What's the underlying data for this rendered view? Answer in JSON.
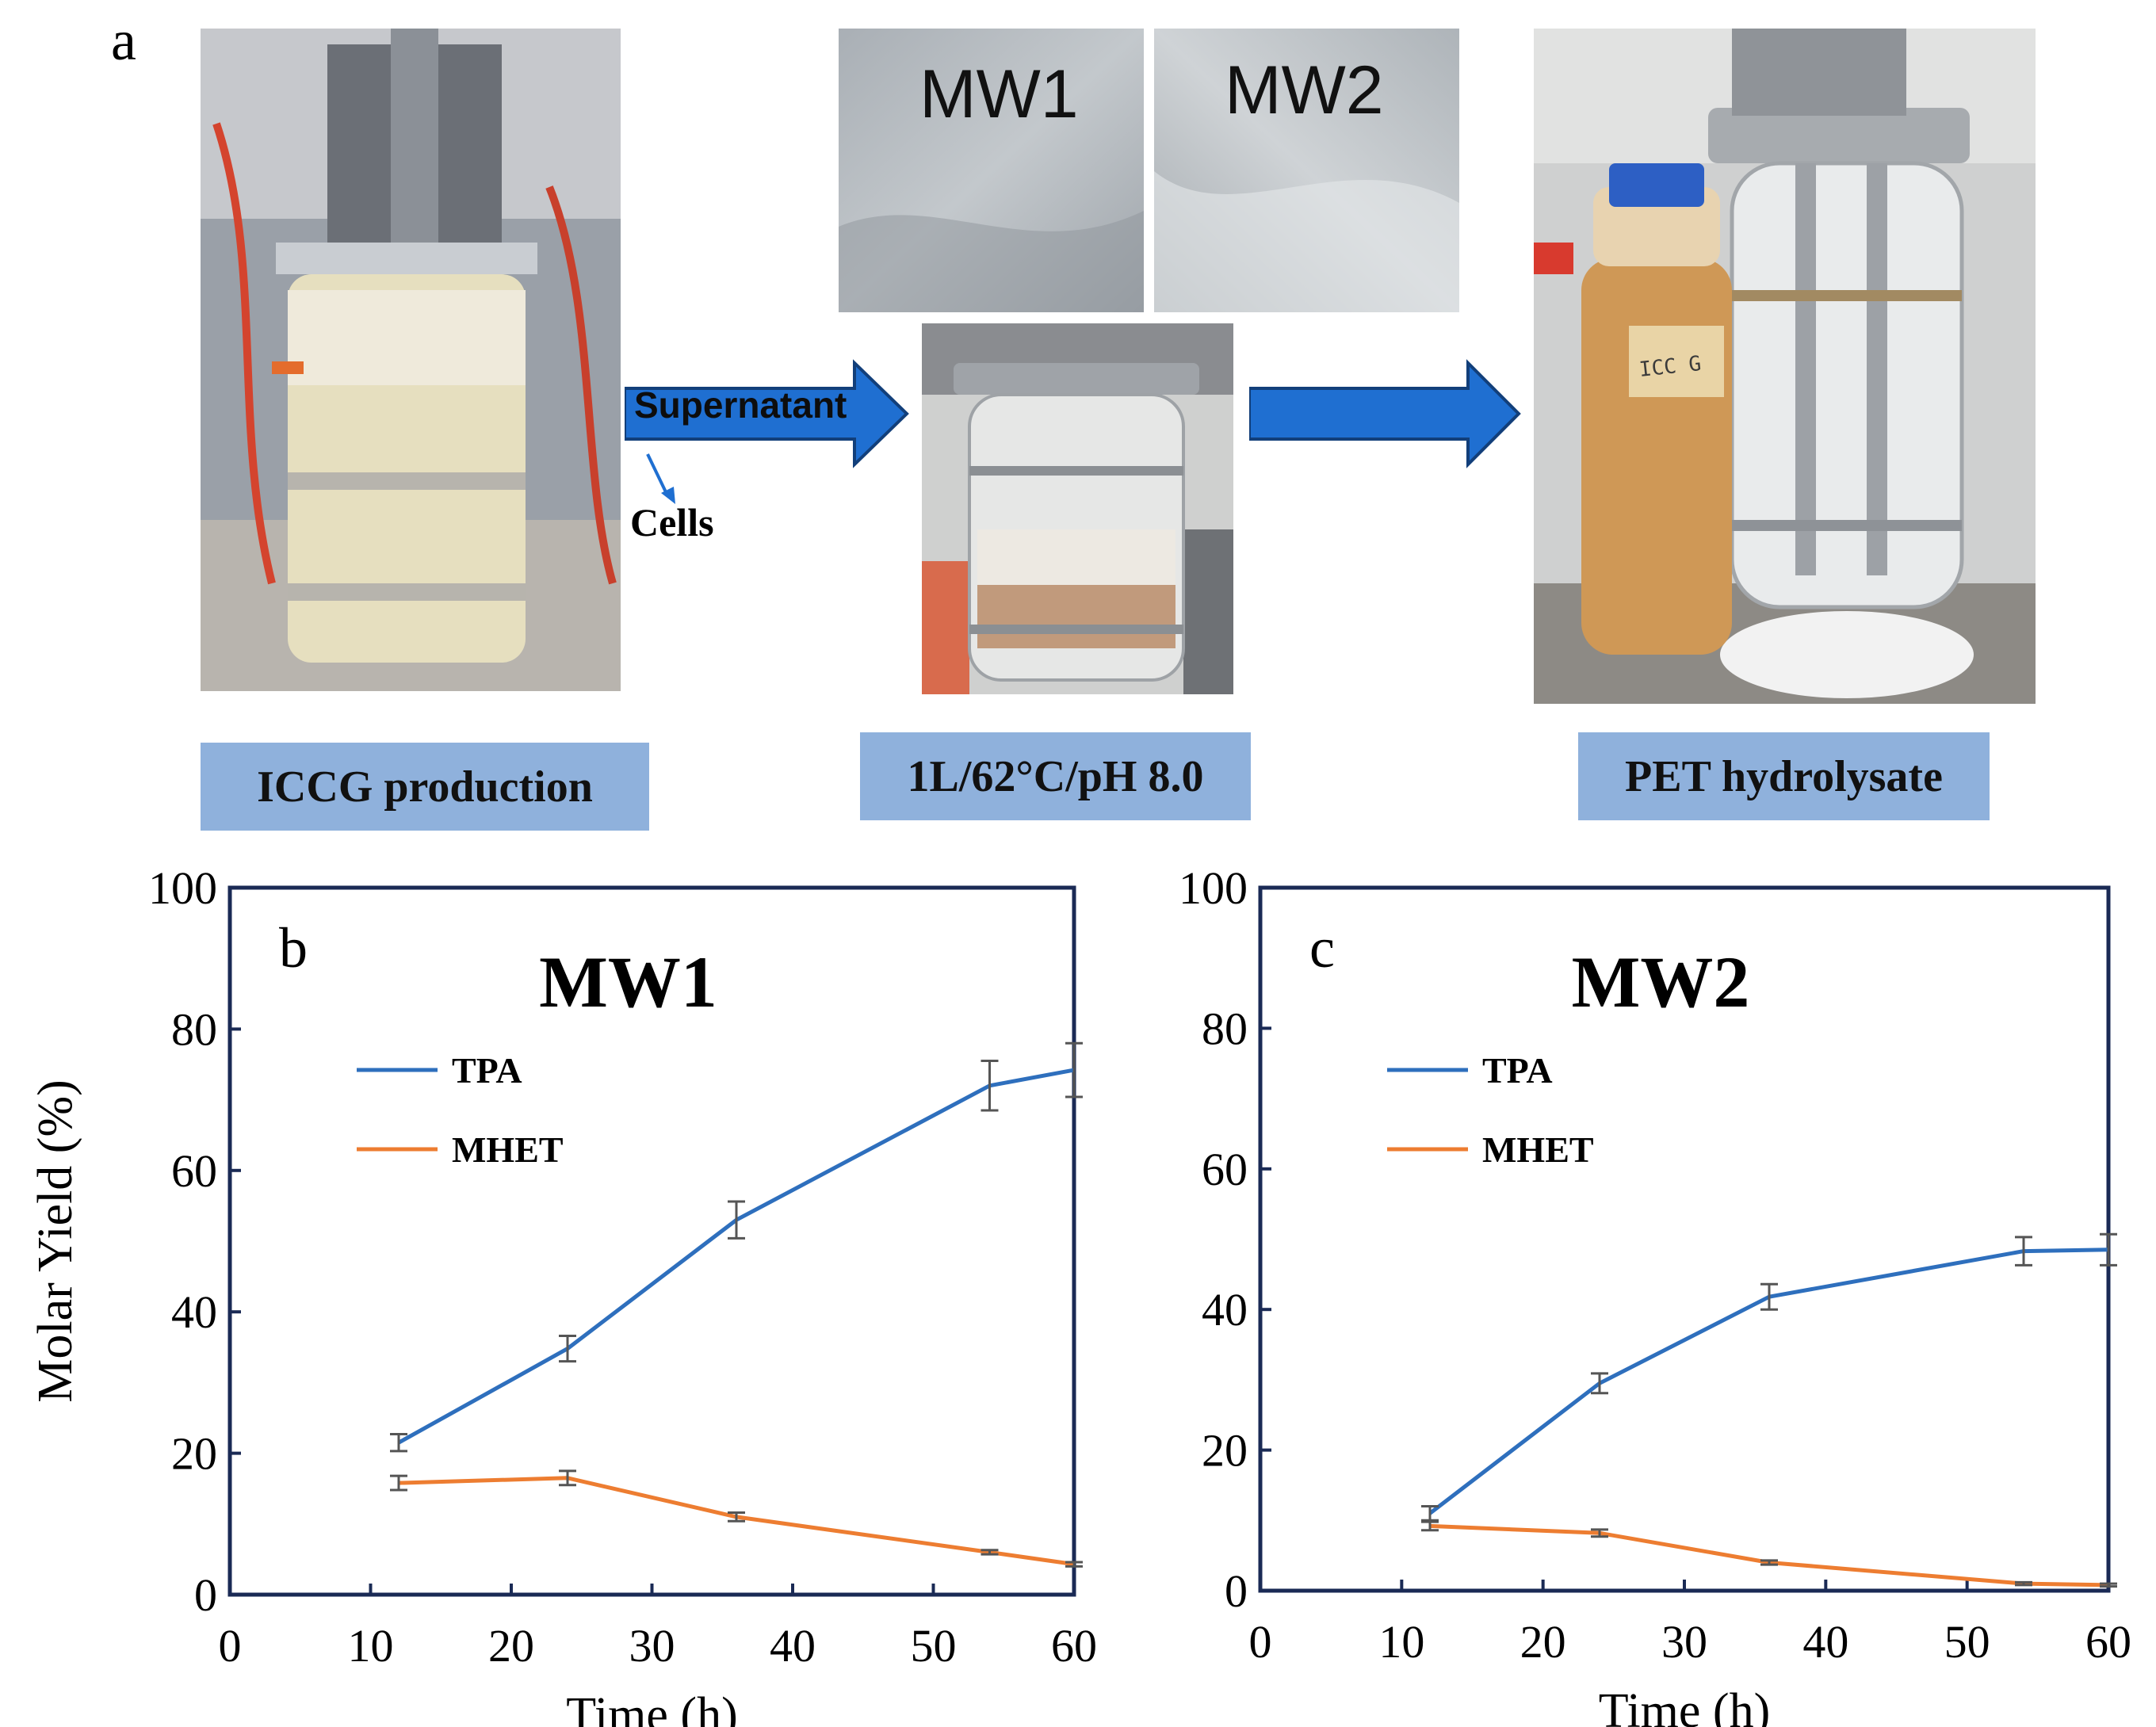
{
  "panel_a": {
    "letter": "a",
    "arrow_label": "Supernatant",
    "cells_label": "Cells",
    "samples": [
      "MW1",
      "MW2"
    ],
    "captions": [
      "ICCG production",
      "1L/62°C/pH 8.0",
      "PET hydrolysate"
    ],
    "bottle_label": "ICC G"
  },
  "colors": {
    "tpa": "#2e6fbd",
    "mhet": "#ed7d31",
    "caption_bg": "#8fb1dc",
    "arrow": "#1f6fd1"
  },
  "chart_data": [
    {
      "type": "line",
      "panel": "b",
      "title": "MW1",
      "xlabel": "Time (h)",
      "ylabel": "Molar Yield (%)",
      "xlim": [
        0,
        60
      ],
      "ylim": [
        0,
        100
      ],
      "xticks": [
        0,
        10,
        20,
        30,
        40,
        50,
        60
      ],
      "yticks": [
        0,
        20,
        40,
        60,
        80,
        100
      ],
      "legend": "top-left",
      "series": [
        {
          "name": "TPA",
          "x": [
            12,
            24,
            36,
            54,
            60
          ],
          "y": [
            21.5,
            34.8,
            53.0,
            72.0,
            74.2
          ],
          "err": [
            1.2,
            1.8,
            2.6,
            3.5,
            3.8
          ]
        },
        {
          "name": "MHET",
          "x": [
            12,
            24,
            36,
            54,
            60
          ],
          "y": [
            15.8,
            16.5,
            11.0,
            6.0,
            4.3
          ],
          "err": [
            1.0,
            1.0,
            0.6,
            0.3,
            0.3
          ]
        }
      ]
    },
    {
      "type": "line",
      "panel": "c",
      "title": "MW2",
      "xlabel": "Time (h)",
      "ylabel": "",
      "xlim": [
        0,
        60
      ],
      "ylim": [
        0,
        100
      ],
      "xticks": [
        0,
        10,
        20,
        30,
        40,
        50,
        60
      ],
      "yticks": [
        0,
        20,
        40,
        60,
        80,
        100
      ],
      "legend": "top-left",
      "series": [
        {
          "name": "TPA",
          "x": [
            12,
            24,
            36,
            54,
            60
          ],
          "y": [
            11.0,
            29.5,
            41.8,
            48.3,
            48.5
          ],
          "err": [
            1.0,
            1.4,
            1.8,
            2.0,
            2.2
          ]
        },
        {
          "name": "MHET",
          "x": [
            12,
            24,
            36,
            54,
            60
          ],
          "y": [
            9.2,
            8.2,
            4.0,
            1.0,
            0.8
          ],
          "err": [
            0.6,
            0.5,
            0.3,
            0.2,
            0.2
          ]
        }
      ]
    }
  ]
}
